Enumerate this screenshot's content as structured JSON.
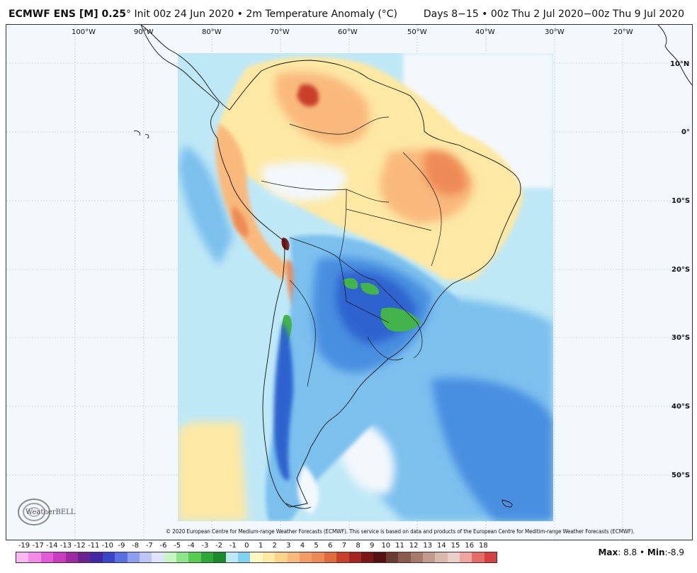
{
  "header": {
    "model": "ECMWF ENS [M] 0.25",
    "deg": "°",
    "init": "Init 00z 24 Jun 2020",
    "bullet": "•",
    "field": "2m Temperature Anomaly (°C)",
    "valid": "Days 8−15 • 00z Thu 2 Jul 2020−00z Thu 9 Jul 2020"
  },
  "map": {
    "lon_labels": [
      "100°W",
      "90°W",
      "80°W",
      "70°W",
      "60°W",
      "50°W",
      "40°W",
      "30°W",
      "20°W"
    ],
    "lat_labels": [
      "10°N",
      "0°",
      "10°S",
      "20°S",
      "30°S",
      "40°S",
      "50°S"
    ],
    "colors": {
      "background": "#f3f8fc",
      "warm_light": "#fde8a4",
      "warm_mid": "#f9b97c",
      "warm_strong": "#ee8a55",
      "warm_peak": "#c9402a",
      "cool_light": "#bfe8f6",
      "cool_mid": "#7cc0ee",
      "cool_strong": "#4a8fe0",
      "cool_deep": "#2e63cf",
      "green_cold": "#43b34b"
    }
  },
  "copyright": "© 2020 European Centre for Medium-range Weather Forecasts (ECMWF). This service is based on data and products of the European Centre for Meditim-range Weather Forecasts (ECMWF).",
  "logo": {
    "text": "WeatherBELL"
  },
  "legend": {
    "ticks": [
      "-19",
      "-17",
      "-14",
      "-13",
      "-12",
      "-11",
      "-10",
      "-9",
      "-8",
      "-7",
      "-6",
      "-5",
      "-4",
      "-3",
      "-2",
      "-1",
      "0",
      "1",
      "2",
      "3",
      "4",
      "5",
      "6",
      "7",
      "8",
      "9",
      "10",
      "11",
      "12",
      "13",
      "14",
      "15",
      "16",
      "18"
    ],
    "colors": [
      "#f9b8f0",
      "#f38be6",
      "#e35bd6",
      "#c93bc0",
      "#9e2aa3",
      "#6b2190",
      "#4326a4",
      "#3a45c7",
      "#5a6fe0",
      "#8d9ef0",
      "#bdc5f7",
      "#dfe3fb",
      "#c7f5c4",
      "#8fe58a",
      "#56cc52",
      "#2fa83a",
      "#1b8a2f",
      "#bfe8f6",
      "#7fd2f2",
      "#fff7c2",
      "#fde8a4",
      "#fbd38b",
      "#f9b97c",
      "#f49c67",
      "#ee8a55",
      "#e06b3f",
      "#c9402a",
      "#a52620",
      "#7a1615",
      "#561012",
      "#6b3a30",
      "#8a5a4c",
      "#a87a6c",
      "#c29a8e",
      "#d9b8ad",
      "#e9cfc7",
      "#f2a5a0",
      "#e66c68",
      "#d64040"
    ]
  },
  "stats": {
    "max_label": "Max",
    "max_value": "8.8",
    "min_label": "Min",
    "min_value": "-8.9"
  }
}
